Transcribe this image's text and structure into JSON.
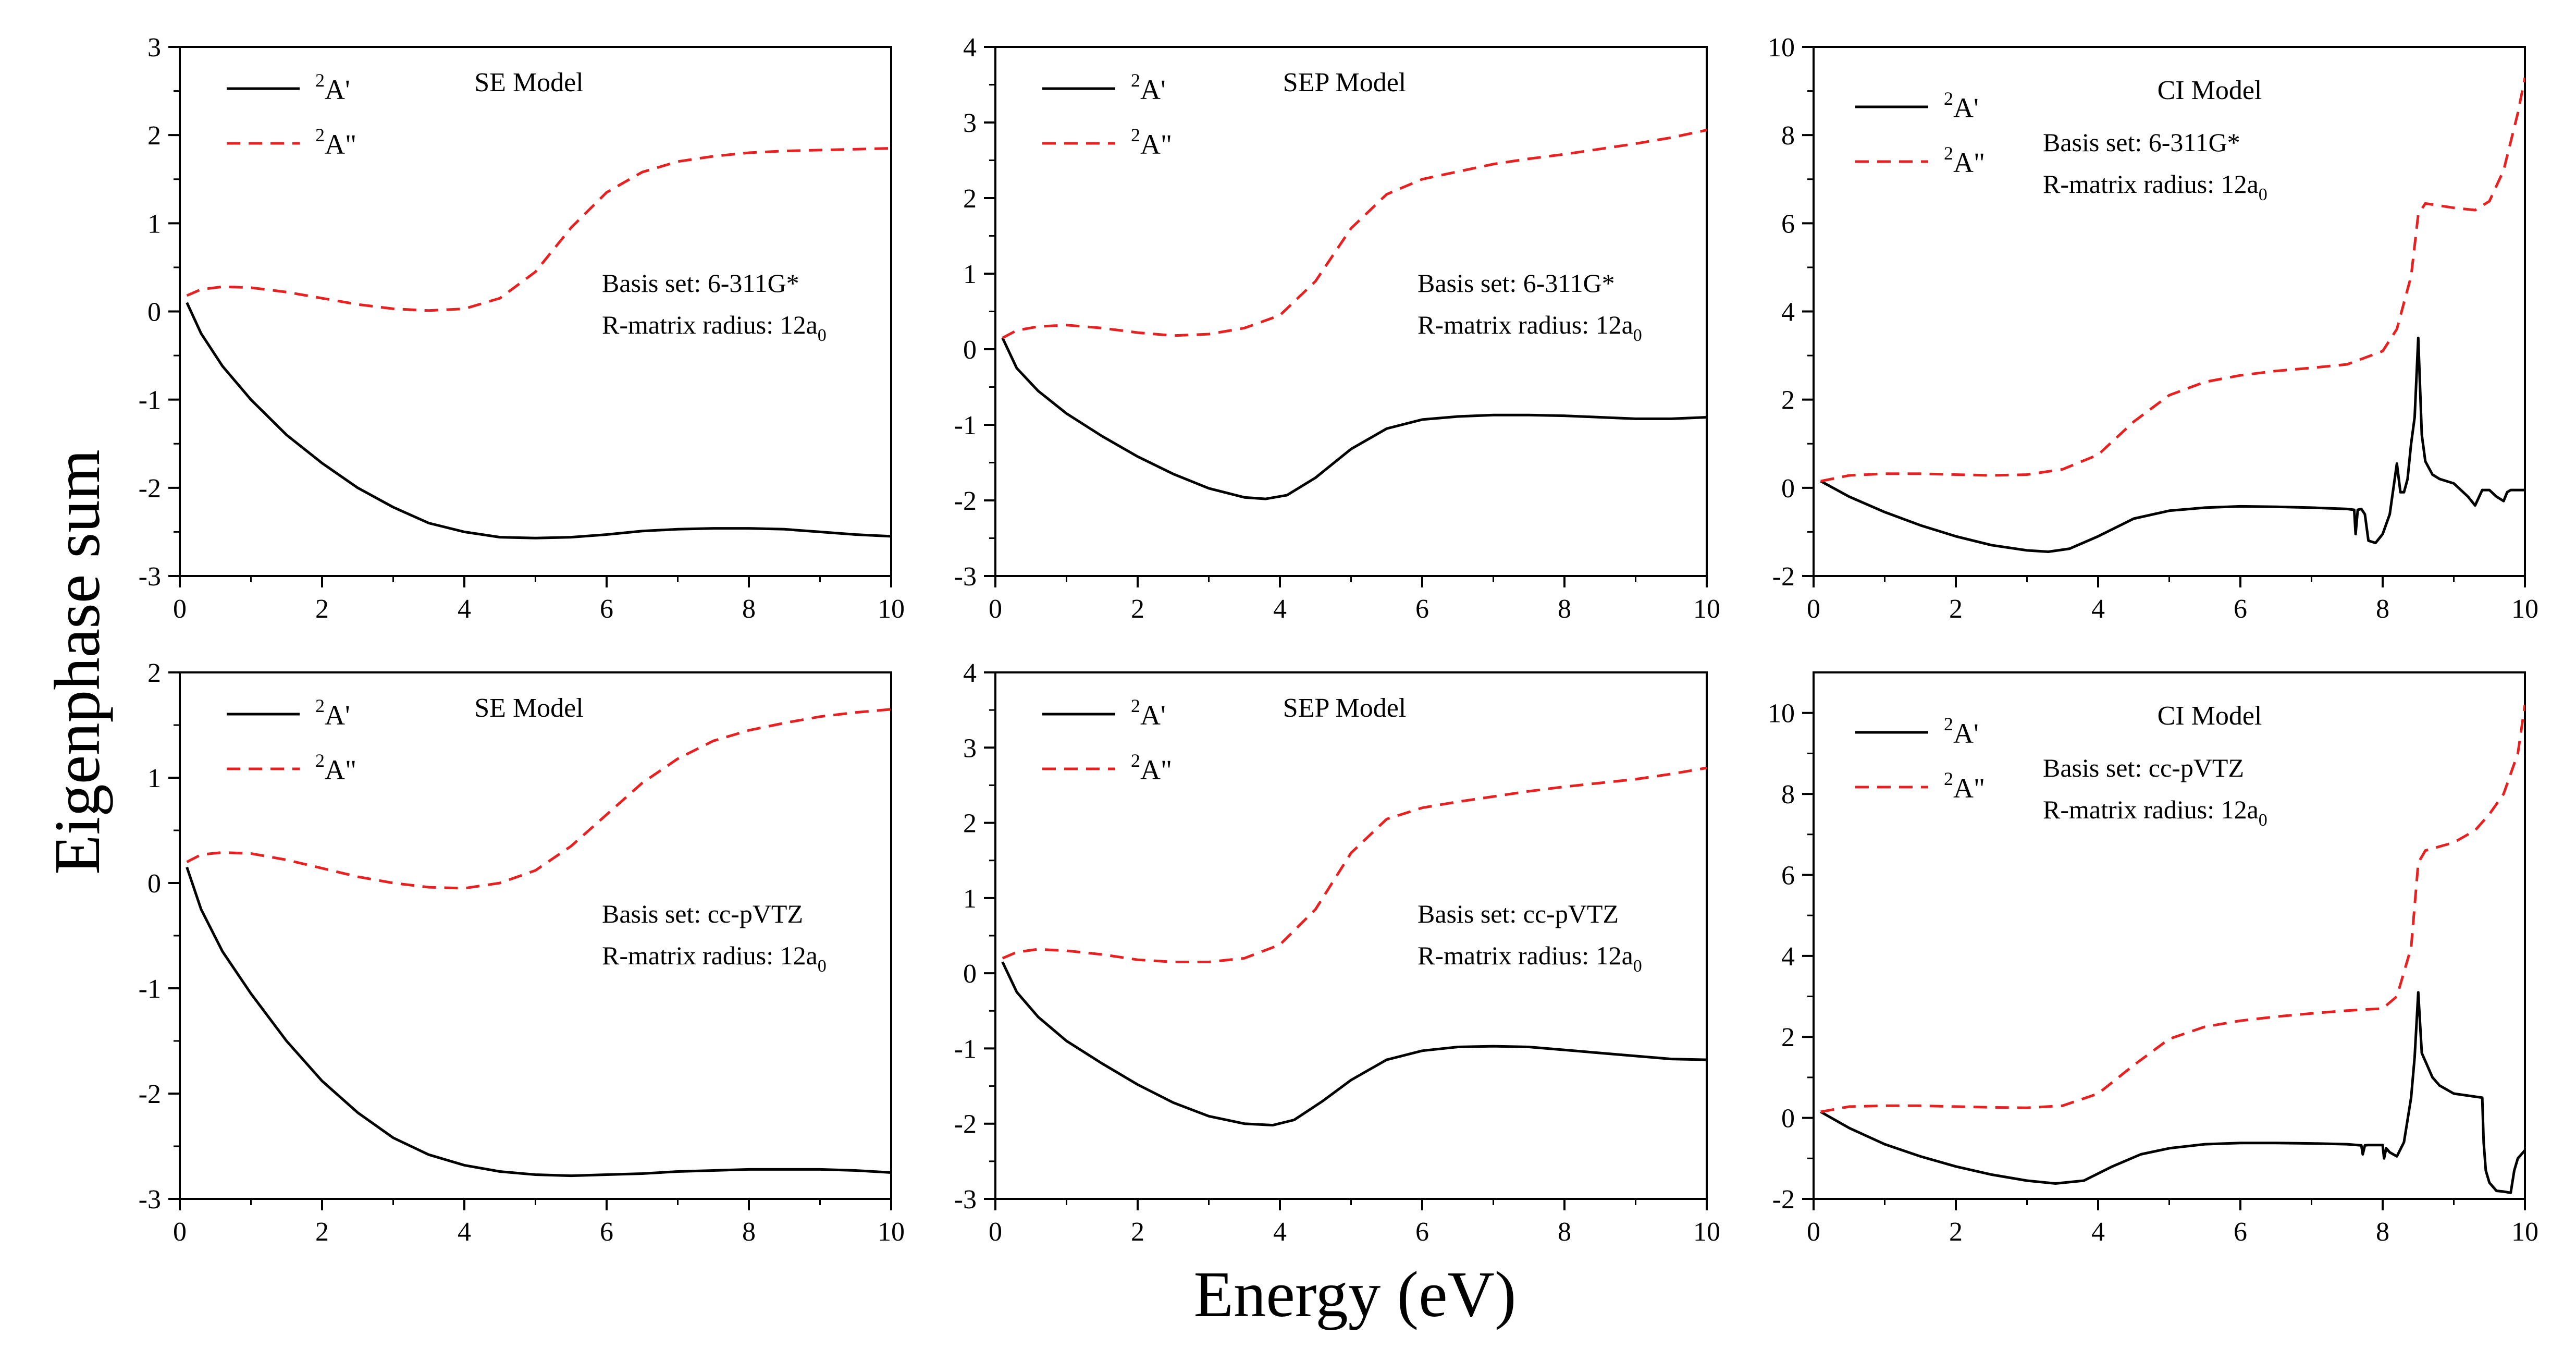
{
  "figure": {
    "ylabel": "Eigenphase sum",
    "xlabel": "Energy (eV)"
  },
  "colors": {
    "a_prime": "#000000",
    "a_double_prime": "#e8201f",
    "axis": "#000000"
  },
  "chart_data": [
    {
      "type": "line",
      "title": "SE Model",
      "basis_set": "Basis set: 6-311G*",
      "radius_text": "R-matrix radius: 12a",
      "radius_sub": "0",
      "xlim": [
        0,
        10
      ],
      "ylim": [
        -3,
        3
      ],
      "xticks": [
        0,
        2,
        4,
        6,
        8,
        10
      ],
      "xtick_labels": [
        "0",
        "2",
        "4",
        "6",
        "8",
        "10"
      ],
      "yticks": [
        -3,
        -2,
        -1,
        0,
        1,
        2,
        3
      ],
      "series": [
        {
          "name": "2A'",
          "sup": "2",
          "label": "A'",
          "style": "solid",
          "x": [
            0.1,
            0.3,
            0.6,
            1.0,
            1.5,
            2.0,
            2.5,
            3.0,
            3.5,
            4.0,
            4.5,
            5.0,
            5.5,
            6.0,
            6.5,
            7.0,
            7.5,
            8.0,
            8.5,
            9.0,
            9.5,
            10.0
          ],
          "y": [
            0.1,
            -0.25,
            -0.62,
            -1.0,
            -1.4,
            -1.72,
            -2.0,
            -2.22,
            -2.4,
            -2.5,
            -2.56,
            -2.57,
            -2.56,
            -2.53,
            -2.49,
            -2.47,
            -2.46,
            -2.46,
            -2.47,
            -2.5,
            -2.53,
            -2.55
          ]
        },
        {
          "name": "2A\"",
          "sup": "2",
          "label": "A\"",
          "style": "dashed",
          "x": [
            0.1,
            0.3,
            0.6,
            1.0,
            1.5,
            2.0,
            2.5,
            3.0,
            3.5,
            4.0,
            4.5,
            5.0,
            5.5,
            6.0,
            6.5,
            7.0,
            7.5,
            8.0,
            8.5,
            9.0,
            9.5,
            10.0
          ],
          "y": [
            0.18,
            0.25,
            0.28,
            0.27,
            0.22,
            0.15,
            0.08,
            0.03,
            0.01,
            0.03,
            0.15,
            0.45,
            0.95,
            1.35,
            1.58,
            1.7,
            1.76,
            1.8,
            1.82,
            1.83,
            1.84,
            1.85
          ]
        }
      ]
    },
    {
      "type": "line",
      "title": "SEP Model",
      "basis_set": "Basis set: 6-311G*",
      "radius_text": "R-matrix radius: 12a",
      "radius_sub": "0",
      "xlim": [
        0,
        10
      ],
      "ylim": [
        -3,
        4
      ],
      "xticks": [
        0,
        2,
        4,
        6,
        8,
        10
      ],
      "xtick_labels": [
        "0",
        "2",
        "4",
        "6",
        "8",
        "10"
      ],
      "yticks": [
        -3,
        -2,
        -1,
        0,
        1,
        2,
        3,
        4
      ],
      "series": [
        {
          "name": "2A'",
          "sup": "2",
          "label": "A'",
          "style": "solid",
          "x": [
            0.1,
            0.3,
            0.6,
            1.0,
            1.5,
            2.0,
            2.5,
            3.0,
            3.5,
            3.8,
            4.1,
            4.5,
            5.0,
            5.5,
            6.0,
            6.5,
            7.0,
            7.5,
            8.0,
            8.5,
            9.0,
            9.5,
            10.0
          ],
          "y": [
            0.15,
            -0.25,
            -0.55,
            -0.85,
            -1.15,
            -1.42,
            -1.65,
            -1.84,
            -1.96,
            -1.98,
            -1.93,
            -1.7,
            -1.32,
            -1.05,
            -0.93,
            -0.89,
            -0.87,
            -0.87,
            -0.88,
            -0.9,
            -0.92,
            -0.92,
            -0.9
          ]
        },
        {
          "name": "2A\"",
          "sup": "2",
          "label": "A\"",
          "style": "dashed",
          "x": [
            0.1,
            0.3,
            0.6,
            1.0,
            1.5,
            2.0,
            2.5,
            3.0,
            3.5,
            4.0,
            4.5,
            5.0,
            5.5,
            6.0,
            6.5,
            7.0,
            7.5,
            8.0,
            8.5,
            9.0,
            9.5,
            10.0
          ],
          "y": [
            0.15,
            0.25,
            0.3,
            0.32,
            0.28,
            0.22,
            0.18,
            0.2,
            0.28,
            0.45,
            0.9,
            1.6,
            2.05,
            2.25,
            2.35,
            2.45,
            2.52,
            2.58,
            2.65,
            2.72,
            2.8,
            2.9
          ]
        }
      ]
    },
    {
      "type": "line",
      "title": "CI Model",
      "basis_set": "Basis set: 6-311G*",
      "radius_text": "R-matrix radius: 12a",
      "radius_sub": "0",
      "xlim": [
        0,
        10
      ],
      "ylim": [
        -2,
        10
      ],
      "xticks": [
        0,
        2,
        4,
        6,
        8,
        10
      ],
      "xtick_labels": [
        "0",
        "2",
        "4",
        "6",
        "8",
        "10"
      ],
      "yticks": [
        -2,
        0,
        2,
        4,
        6,
        8,
        10
      ],
      "series": [
        {
          "name": "2A'",
          "sup": "2",
          "label": "A'",
          "style": "solid",
          "x": [
            0.1,
            0.5,
            1.0,
            1.5,
            2.0,
            2.5,
            3.0,
            3.3,
            3.6,
            4.0,
            4.5,
            5.0,
            5.5,
            6.0,
            6.5,
            7.0,
            7.5,
            7.6,
            7.62,
            7.65,
            7.7,
            7.75,
            7.8,
            7.9,
            8.0,
            8.1,
            8.2,
            8.25,
            8.3,
            8.35,
            8.4,
            8.45,
            8.5,
            8.55,
            8.6,
            8.7,
            8.8,
            9.0,
            9.2,
            9.3,
            9.4,
            9.5,
            9.6,
            9.7,
            9.75,
            9.8,
            9.9,
            10.0
          ],
          "y": [
            0.15,
            -0.2,
            -0.55,
            -0.85,
            -1.1,
            -1.3,
            -1.42,
            -1.45,
            -1.38,
            -1.1,
            -0.7,
            -0.52,
            -0.45,
            -0.42,
            -0.43,
            -0.45,
            -0.48,
            -0.5,
            -1.05,
            -0.5,
            -0.48,
            -0.6,
            -1.2,
            -1.25,
            -1.05,
            -0.6,
            0.55,
            -0.1,
            -0.1,
            0.2,
            1.0,
            1.6,
            3.4,
            1.2,
            0.6,
            0.3,
            0.2,
            0.1,
            -0.2,
            -0.4,
            -0.05,
            -0.05,
            -0.2,
            -0.3,
            -0.1,
            -0.05,
            -0.05,
            -0.05
          ]
        },
        {
          "name": "2A\"",
          "sup": "2",
          "label": "A\"",
          "style": "dashed",
          "x": [
            0.1,
            0.5,
            1.0,
            1.5,
            2.0,
            2.5,
            3.0,
            3.5,
            4.0,
            4.5,
            5.0,
            5.5,
            6.0,
            6.5,
            7.0,
            7.5,
            8.0,
            8.2,
            8.4,
            8.5,
            8.6,
            9.0,
            9.3,
            9.5,
            9.7,
            9.9,
            10.0
          ],
          "y": [
            0.15,
            0.28,
            0.32,
            0.32,
            0.3,
            0.28,
            0.3,
            0.42,
            0.75,
            1.5,
            2.1,
            2.4,
            2.55,
            2.65,
            2.72,
            2.8,
            3.1,
            3.6,
            4.8,
            6.2,
            6.45,
            6.35,
            6.3,
            6.5,
            7.2,
            8.5,
            9.3
          ]
        }
      ]
    },
    {
      "type": "line",
      "title": "SE Model",
      "basis_set": "Basis set: cc-pVTZ",
      "radius_text": "R-matrix radius: 12a",
      "radius_sub": "0",
      "xlim": [
        0,
        10
      ],
      "ylim": [
        -3,
        2
      ],
      "xticks": [
        0,
        2,
        4,
        6,
        8,
        10
      ],
      "xtick_labels": [
        "0",
        "2",
        "4",
        "6",
        "8",
        "10"
      ],
      "yticks": [
        -3,
        -2,
        -1,
        0,
        1,
        2
      ],
      "series": [
        {
          "name": "2A'",
          "sup": "2",
          "label": "A'",
          "style": "solid",
          "x": [
            0.1,
            0.3,
            0.6,
            1.0,
            1.5,
            2.0,
            2.5,
            3.0,
            3.5,
            4.0,
            4.5,
            5.0,
            5.5,
            6.0,
            6.5,
            7.0,
            7.5,
            8.0,
            8.5,
            9.0,
            9.5,
            10.0
          ],
          "y": [
            0.15,
            -0.25,
            -0.65,
            -1.05,
            -1.5,
            -1.88,
            -2.18,
            -2.42,
            -2.58,
            -2.68,
            -2.74,
            -2.77,
            -2.78,
            -2.77,
            -2.76,
            -2.74,
            -2.73,
            -2.72,
            -2.72,
            -2.72,
            -2.73,
            -2.75
          ]
        },
        {
          "name": "2A\"",
          "sup": "2",
          "label": "A\"",
          "style": "dashed",
          "x": [
            0.1,
            0.3,
            0.6,
            1.0,
            1.5,
            2.0,
            2.5,
            3.0,
            3.5,
            4.0,
            4.5,
            5.0,
            5.5,
            6.0,
            6.5,
            7.0,
            7.5,
            8.0,
            8.5,
            9.0,
            9.5,
            10.0
          ],
          "y": [
            0.2,
            0.27,
            0.29,
            0.28,
            0.22,
            0.14,
            0.06,
            0.0,
            -0.04,
            -0.05,
            0.0,
            0.12,
            0.35,
            0.65,
            0.95,
            1.18,
            1.35,
            1.45,
            1.52,
            1.58,
            1.62,
            1.65
          ]
        }
      ]
    },
    {
      "type": "line",
      "title": "SEP Model",
      "basis_set": "Basis set: cc-pVTZ",
      "radius_text": "R-matrix radius: 12a",
      "radius_sub": "0",
      "xlim": [
        0,
        10
      ],
      "ylim": [
        -3,
        4
      ],
      "xticks": [
        0,
        2,
        4,
        6,
        8,
        10
      ],
      "xtick_labels": [
        "0",
        "2",
        "4",
        "6",
        "8",
        "10"
      ],
      "yticks": [
        -3,
        -2,
        -1,
        0,
        1,
        2,
        3,
        4
      ],
      "series": [
        {
          "name": "2A'",
          "sup": "2",
          "label": "A'",
          "style": "solid",
          "x": [
            0.1,
            0.3,
            0.6,
            1.0,
            1.5,
            2.0,
            2.5,
            3.0,
            3.5,
            3.9,
            4.2,
            4.6,
            5.0,
            5.5,
            6.0,
            6.5,
            7.0,
            7.5,
            8.0,
            8.5,
            9.0,
            9.5,
            10.0
          ],
          "y": [
            0.15,
            -0.25,
            -0.58,
            -0.9,
            -1.2,
            -1.48,
            -1.72,
            -1.9,
            -2.0,
            -2.02,
            -1.95,
            -1.7,
            -1.42,
            -1.15,
            -1.03,
            -0.98,
            -0.97,
            -0.98,
            -1.02,
            -1.06,
            -1.1,
            -1.14,
            -1.15
          ]
        },
        {
          "name": "2A\"",
          "sup": "2",
          "label": "A\"",
          "style": "dashed",
          "x": [
            0.1,
            0.3,
            0.6,
            1.0,
            1.5,
            2.0,
            2.5,
            3.0,
            3.5,
            4.0,
            4.5,
            5.0,
            5.5,
            6.0,
            6.5,
            7.0,
            7.5,
            8.0,
            8.5,
            9.0,
            9.5,
            10.0
          ],
          "y": [
            0.2,
            0.28,
            0.32,
            0.3,
            0.25,
            0.18,
            0.15,
            0.15,
            0.2,
            0.38,
            0.85,
            1.6,
            2.05,
            2.2,
            2.28,
            2.35,
            2.42,
            2.48,
            2.53,
            2.58,
            2.65,
            2.73
          ]
        }
      ]
    },
    {
      "type": "line",
      "title": "CI Model",
      "basis_set": "Basis set: cc-pVTZ",
      "radius_text": "R-matrix radius: 12a",
      "radius_sub": "0",
      "xlim": [
        0,
        10
      ],
      "ylim": [
        -2,
        11
      ],
      "xticks": [
        0,
        2,
        4,
        6,
        8,
        10
      ],
      "xtick_labels": [
        "0",
        "2",
        "4",
        "6",
        "8",
        "10"
      ],
      "yticks": [
        -2,
        0,
        2,
        4,
        6,
        8,
        10
      ],
      "series": [
        {
          "name": "2A'",
          "sup": "2",
          "label": "A'",
          "style": "solid",
          "x": [
            0.1,
            0.5,
            1.0,
            1.5,
            2.0,
            2.5,
            3.0,
            3.4,
            3.8,
            4.2,
            4.6,
            5.0,
            5.5,
            6.0,
            6.5,
            7.0,
            7.5,
            7.7,
            7.72,
            7.75,
            7.8,
            8.0,
            8.02,
            8.05,
            8.1,
            8.2,
            8.3,
            8.4,
            8.45,
            8.5,
            8.55,
            8.6,
            8.7,
            8.8,
            9.0,
            9.2,
            9.4,
            9.42,
            9.45,
            9.5,
            9.6,
            9.7,
            9.8,
            9.85,
            9.9,
            10.0
          ],
          "y": [
            0.15,
            -0.25,
            -0.65,
            -0.95,
            -1.2,
            -1.4,
            -1.55,
            -1.62,
            -1.55,
            -1.2,
            -0.9,
            -0.75,
            -0.65,
            -0.62,
            -0.62,
            -0.63,
            -0.65,
            -0.68,
            -0.9,
            -0.68,
            -0.67,
            -0.67,
            -1.0,
            -0.75,
            -0.85,
            -0.95,
            -0.6,
            0.5,
            1.5,
            3.1,
            1.6,
            1.4,
            1.0,
            0.8,
            0.6,
            0.55,
            0.5,
            -0.6,
            -1.3,
            -1.6,
            -1.8,
            -1.82,
            -1.85,
            -1.3,
            -1.0,
            -0.8
          ]
        },
        {
          "name": "2A\"",
          "sup": "2",
          "label": "A\"",
          "style": "dashed",
          "x": [
            0.1,
            0.5,
            1.0,
            1.5,
            2.0,
            2.5,
            3.0,
            3.5,
            4.0,
            4.5,
            5.0,
            5.5,
            6.0,
            6.5,
            7.0,
            7.5,
            8.0,
            8.2,
            8.4,
            8.5,
            8.6,
            9.0,
            9.3,
            9.5,
            9.7,
            9.9,
            10.0
          ],
          "y": [
            0.15,
            0.28,
            0.3,
            0.3,
            0.28,
            0.26,
            0.25,
            0.3,
            0.6,
            1.3,
            1.95,
            2.25,
            2.4,
            2.5,
            2.58,
            2.65,
            2.7,
            3.0,
            4.2,
            6.3,
            6.6,
            6.8,
            7.1,
            7.5,
            8.0,
            9.0,
            10.2
          ]
        }
      ]
    }
  ]
}
